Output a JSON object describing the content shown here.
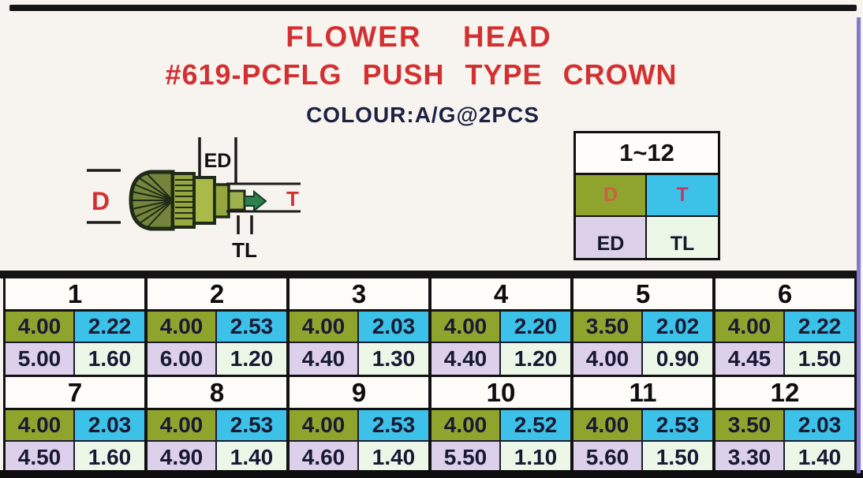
{
  "header": {
    "line1": "FLOWER HEAD",
    "line2": "#619-PCFLG PUSH TYPE CROWN",
    "colour": "COLOUR:A/G@2PCS"
  },
  "diagram": {
    "d_label": "D",
    "ed_label": "ED",
    "t_label": "T",
    "tl_label": "TL"
  },
  "legend": {
    "range": "1~12",
    "d_label": "D",
    "t_label": "T",
    "ed_label": "ED",
    "tl_label": "TL"
  },
  "colors": {
    "title_red": "#d43031",
    "navy_text": "#1d2142",
    "cell_d": "#8fa42c",
    "cell_t": "#3cc2e8",
    "cell_ed": "#dcd0ea",
    "cell_tl": "#ecf7e7",
    "bar_black": "#141414",
    "edge_purple": "#8478d2"
  },
  "chart_data": {
    "type": "table",
    "title": "#619-PCFLG PUSH TYPE CROWN",
    "value_labels": [
      "D",
      "T",
      "ED",
      "TL"
    ],
    "columns": [
      {
        "no": "1",
        "D": "4.00",
        "T": "2.22",
        "ED": "5.00",
        "TL": "1.60"
      },
      {
        "no": "2",
        "D": "4.00",
        "T": "2.53",
        "ED": "6.00",
        "TL": "1.20"
      },
      {
        "no": "3",
        "D": "4.00",
        "T": "2.03",
        "ED": "4.40",
        "TL": "1.30"
      },
      {
        "no": "4",
        "D": "4.00",
        "T": "2.20",
        "ED": "4.40",
        "TL": "1.20"
      },
      {
        "no": "5",
        "D": "3.50",
        "T": "2.02",
        "ED": "4.00",
        "TL": "0.90"
      },
      {
        "no": "6",
        "D": "4.00",
        "T": "2.22",
        "ED": "4.45",
        "TL": "1.50"
      },
      {
        "no": "7",
        "D": "4.00",
        "T": "2.03",
        "ED": "4.50",
        "TL": "1.60"
      },
      {
        "no": "8",
        "D": "4.00",
        "T": "2.53",
        "ED": "4.90",
        "TL": "1.40"
      },
      {
        "no": "9",
        "D": "4.00",
        "T": "2.53",
        "ED": "4.60",
        "TL": "1.40"
      },
      {
        "no": "10",
        "D": "4.00",
        "T": "2.52",
        "ED": "5.50",
        "TL": "1.10"
      },
      {
        "no": "11",
        "D": "4.00",
        "T": "2.53",
        "ED": "5.60",
        "TL": "1.50"
      },
      {
        "no": "12",
        "D": "3.50",
        "T": "2.03",
        "ED": "3.30",
        "TL": "1.40"
      }
    ]
  }
}
